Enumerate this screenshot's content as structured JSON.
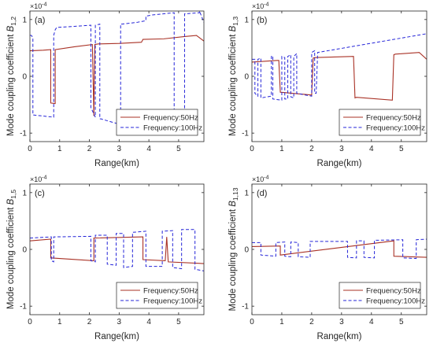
{
  "figure": {
    "colors": {
      "series_50": "#a93226",
      "series_100": "#2424d8",
      "axes": "#262626"
    },
    "multiplier_base": "×10",
    "multiplier_exp": "-4"
  },
  "chart_data": [
    {
      "type": "line",
      "panel": "(a)",
      "ylabel_main": "Mode coupling coefficient ",
      "ylabel_sym": "B",
      "ylabel_sub": "1,2",
      "xlabel": "Range(km)",
      "xlim": [
        0,
        5.85
      ],
      "ylim": [
        -1.15,
        1.15
      ],
      "xticks": [
        0,
        1,
        2,
        3,
        4,
        5
      ],
      "yticks": [
        -1,
        0,
        1
      ],
      "legend": "bottom-right",
      "series": [
        {
          "name": "Frequency:50Hz",
          "color": "#a93226",
          "style": "solid",
          "x": [
            0,
            0.45,
            0.7,
            0.7,
            0.85,
            0.85,
            1.5,
            2.1,
            2.15,
            2.18,
            2.3,
            3.0,
            3.75,
            3.8,
            4.5,
            5.2,
            5.6,
            5.85
          ],
          "y": [
            0.45,
            0.46,
            0.47,
            -0.47,
            -0.48,
            0.47,
            0.52,
            0.56,
            -0.7,
            0.56,
            0.57,
            0.58,
            0.6,
            0.65,
            0.66,
            0.7,
            0.72,
            0.62
          ]
        },
        {
          "name": "Frequency:100Hz",
          "color": "#2424d8",
          "style": "dashed",
          "x": [
            0,
            0.05,
            0.1,
            0.1,
            0.8,
            0.8,
            0.85,
            0.9,
            1.5,
            2.05,
            2.05,
            2.2,
            2.2,
            2.35,
            2.35,
            2.4,
            2.45,
            3.05,
            3.05,
            3.1,
            3.6,
            3.9,
            3.9,
            4.1,
            4.85,
            4.85,
            5.2,
            5.2,
            5.7,
            5.7,
            5.85
          ],
          "y": [
            0.72,
            0.72,
            0.68,
            -0.68,
            -0.72,
            0.72,
            0.82,
            0.86,
            0.88,
            0.9,
            -0.55,
            -0.72,
            0.9,
            0.92,
            -0.75,
            -0.75,
            -0.76,
            -0.85,
            0.92,
            0.92,
            0.95,
            0.98,
            1.06,
            1.08,
            1.12,
            -0.95,
            -0.98,
            1.1,
            1.12,
            1.15,
            0.95
          ]
        }
      ]
    },
    {
      "type": "line",
      "panel": "(b)",
      "ylabel_main": "Mode coupling coefficient ",
      "ylabel_sym": "B",
      "ylabel_sub": "1,3",
      "xlabel": "Range(km)",
      "xlim": [
        0,
        5.85
      ],
      "ylim": [
        -1.15,
        1.15
      ],
      "xticks": [
        0,
        1,
        2,
        3,
        4,
        5
      ],
      "yticks": [
        -1,
        0,
        1
      ],
      "legend": "bottom-right",
      "series": [
        {
          "name": "Frequency:50Hz",
          "color": "#a93226",
          "style": "solid",
          "x": [
            0,
            0.85,
            0.9,
            0.95,
            1.8,
            2.0,
            2.05,
            2.1,
            3.4,
            3.45,
            3.5,
            4.7,
            4.75,
            4.8,
            5.6,
            5.85
          ],
          "y": [
            0.25,
            0.28,
            0.28,
            -0.28,
            -0.32,
            -0.33,
            0.32,
            0.33,
            0.35,
            -0.38,
            -0.37,
            -0.42,
            0.38,
            0.39,
            0.42,
            0.3
          ]
        },
        {
          "name": "Frequency:100Hz",
          "color": "#2424d8",
          "style": "dashed",
          "x": [
            0,
            0.1,
            0.1,
            0.2,
            0.2,
            0.3,
            0.3,
            0.65,
            0.65,
            0.7,
            0.7,
            1.0,
            1.0,
            1.1,
            1.1,
            1.2,
            1.2,
            1.3,
            1.3,
            1.4,
            1.4,
            1.5,
            1.5,
            2.0,
            2.0,
            2.1,
            2.1,
            2.15,
            2.2,
            5.85
          ],
          "y": [
            0.3,
            0.3,
            -0.3,
            -0.35,
            0.3,
            0.32,
            -0.38,
            -0.35,
            0.35,
            0.36,
            -0.4,
            -0.42,
            0.35,
            0.33,
            -0.4,
            -0.4,
            0.35,
            0.38,
            -0.36,
            -0.38,
            0.35,
            0.4,
            -0.3,
            -0.35,
            0.42,
            0.45,
            -0.3,
            -0.3,
            0.42,
            0.75
          ]
        }
      ]
    },
    {
      "type": "line",
      "panel": "(c)",
      "ylabel_main": "Mode coupling coefficient ",
      "ylabel_sym": "B",
      "ylabel_sub": "1,5",
      "xlabel": "Range(km)",
      "xlim": [
        0,
        5.85
      ],
      "ylim": [
        -1.15,
        1.15
      ],
      "xticks": [
        0,
        1,
        2,
        3,
        4,
        5
      ],
      "yticks": [
        -1,
        0,
        1
      ],
      "legend": "bottom-right",
      "series": [
        {
          "name": "Frequency:50Hz",
          "color": "#a93226",
          "style": "solid",
          "x": [
            0,
            0.7,
            0.7,
            2.15,
            2.15,
            3.8,
            3.8,
            4.55,
            4.6,
            4.65,
            5.85
          ],
          "y": [
            0.15,
            0.18,
            -0.15,
            -0.2,
            0.2,
            0.22,
            -0.18,
            -0.2,
            0.22,
            -0.22,
            -0.25
          ]
        },
        {
          "name": "Frequency:100Hz",
          "color": "#2424d8",
          "style": "dashed",
          "x": [
            0,
            0.72,
            0.72,
            0.8,
            0.8,
            2.05,
            2.05,
            2.2,
            2.2,
            2.6,
            2.6,
            2.9,
            2.9,
            3.15,
            3.15,
            3.45,
            3.45,
            3.9,
            3.9,
            4.45,
            4.45,
            4.8,
            4.8,
            5.1,
            5.1,
            5.55,
            5.55,
            5.85
          ],
          "y": [
            0.2,
            0.22,
            -0.2,
            -0.22,
            0.22,
            0.23,
            -0.2,
            -0.22,
            0.25,
            0.25,
            -0.26,
            -0.28,
            0.28,
            0.28,
            -0.32,
            -0.3,
            0.3,
            0.32,
            -0.3,
            -0.3,
            0.32,
            0.33,
            -0.32,
            -0.34,
            0.35,
            0.35,
            -0.35,
            -0.38
          ]
        }
      ]
    },
    {
      "type": "line",
      "panel": "(d)",
      "ylabel_main": "Mode coupling coefficient ",
      "ylabel_sym": "B",
      "ylabel_sub": "1,13",
      "xlabel": "Range(km)",
      "xlim": [
        0,
        5.85
      ],
      "ylim": [
        -1.15,
        1.15
      ],
      "xticks": [
        0,
        1,
        2,
        3,
        4,
        5
      ],
      "yticks": [
        -1,
        0,
        1
      ],
      "legend": "bottom-right",
      "series": [
        {
          "name": "Frequency:50Hz",
          "color": "#a93226",
          "style": "solid",
          "x": [
            0,
            0.95,
            0.95,
            4.75,
            4.75,
            5.85
          ],
          "y": [
            0.05,
            0.06,
            -0.1,
            0.15,
            -0.12,
            -0.14
          ]
        },
        {
          "name": "Frequency:100Hz",
          "color": "#2424d8",
          "style": "dashed",
          "x": [
            0,
            0.3,
            0.3,
            0.8,
            0.8,
            1.1,
            1.1,
            1.3,
            1.3,
            1.55,
            1.55,
            1.95,
            1.95,
            3.2,
            3.2,
            3.5,
            3.5,
            3.75,
            3.75,
            4.1,
            4.1,
            5.05,
            5.05,
            5.5,
            5.5,
            5.85
          ],
          "y": [
            0.12,
            0.12,
            -0.1,
            -0.12,
            0.12,
            0.13,
            -0.12,
            -0.13,
            0.13,
            0.12,
            -0.13,
            -0.14,
            0.14,
            0.14,
            -0.14,
            -0.15,
            0.15,
            0.15,
            -0.14,
            -0.15,
            0.16,
            0.17,
            -0.15,
            -0.16,
            0.17,
            0.18
          ]
        }
      ]
    }
  ]
}
